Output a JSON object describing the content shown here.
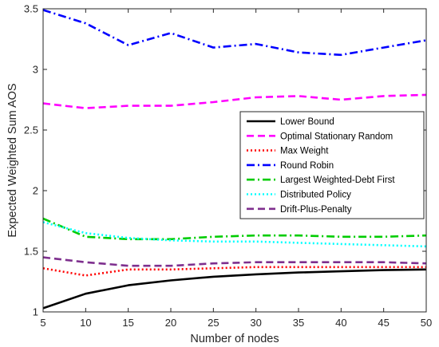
{
  "chart_data": {
    "type": "line",
    "xlabel": "Number of nodes",
    "ylabel": "Expected Weighted Sum AOS",
    "xlim": [
      5,
      50
    ],
    "ylim": [
      1,
      3.5
    ],
    "x_ticks": [
      "5",
      "10",
      "15",
      "20",
      "25",
      "30",
      "35",
      "40",
      "45",
      "50"
    ],
    "y_ticks": [
      "1",
      "1.5",
      "2",
      "2.5",
      "3",
      "3.5"
    ],
    "grid": false,
    "legend_position": "right",
    "x": [
      5,
      10,
      15,
      20,
      25,
      30,
      35,
      40,
      45,
      50
    ],
    "series": [
      {
        "name": "Lower Bound",
        "color": "#000000",
        "dash": "solid",
        "values": [
          1.03,
          1.15,
          1.22,
          1.26,
          1.29,
          1.31,
          1.325,
          1.335,
          1.345,
          1.35
        ]
      },
      {
        "name": "Optimal Stationary Random",
        "color": "#ff00ff",
        "dash": "dashed",
        "values": [
          2.72,
          2.68,
          2.7,
          2.7,
          2.73,
          2.77,
          2.78,
          2.75,
          2.78,
          2.79
        ]
      },
      {
        "name": "Max Weight",
        "color": "#ff0000",
        "dash": "dotted",
        "values": [
          1.36,
          1.3,
          1.35,
          1.35,
          1.36,
          1.37,
          1.37,
          1.37,
          1.37,
          1.37
        ]
      },
      {
        "name": "Round Robin",
        "color": "#0000ff",
        "dash": "dashdot",
        "values": [
          3.49,
          3.38,
          3.2,
          3.3,
          3.18,
          3.21,
          3.14,
          3.12,
          3.18,
          3.24
        ]
      },
      {
        "name": "Largest Weighted-Debt First",
        "color": "#00cc00",
        "dash": "dashdot",
        "values": [
          1.77,
          1.62,
          1.6,
          1.6,
          1.62,
          1.63,
          1.63,
          1.62,
          1.62,
          1.63
        ]
      },
      {
        "name": "Distributed Policy",
        "color": "#00ffff",
        "dash": "dotted",
        "values": [
          1.74,
          1.65,
          1.61,
          1.59,
          1.58,
          1.58,
          1.57,
          1.56,
          1.55,
          1.54
        ]
      },
      {
        "name": "Drift-Plus-Penalty",
        "color": "#7e2f8e",
        "dash": "dashed",
        "values": [
          1.45,
          1.41,
          1.38,
          1.38,
          1.4,
          1.41,
          1.41,
          1.41,
          1.41,
          1.4
        ]
      }
    ]
  }
}
